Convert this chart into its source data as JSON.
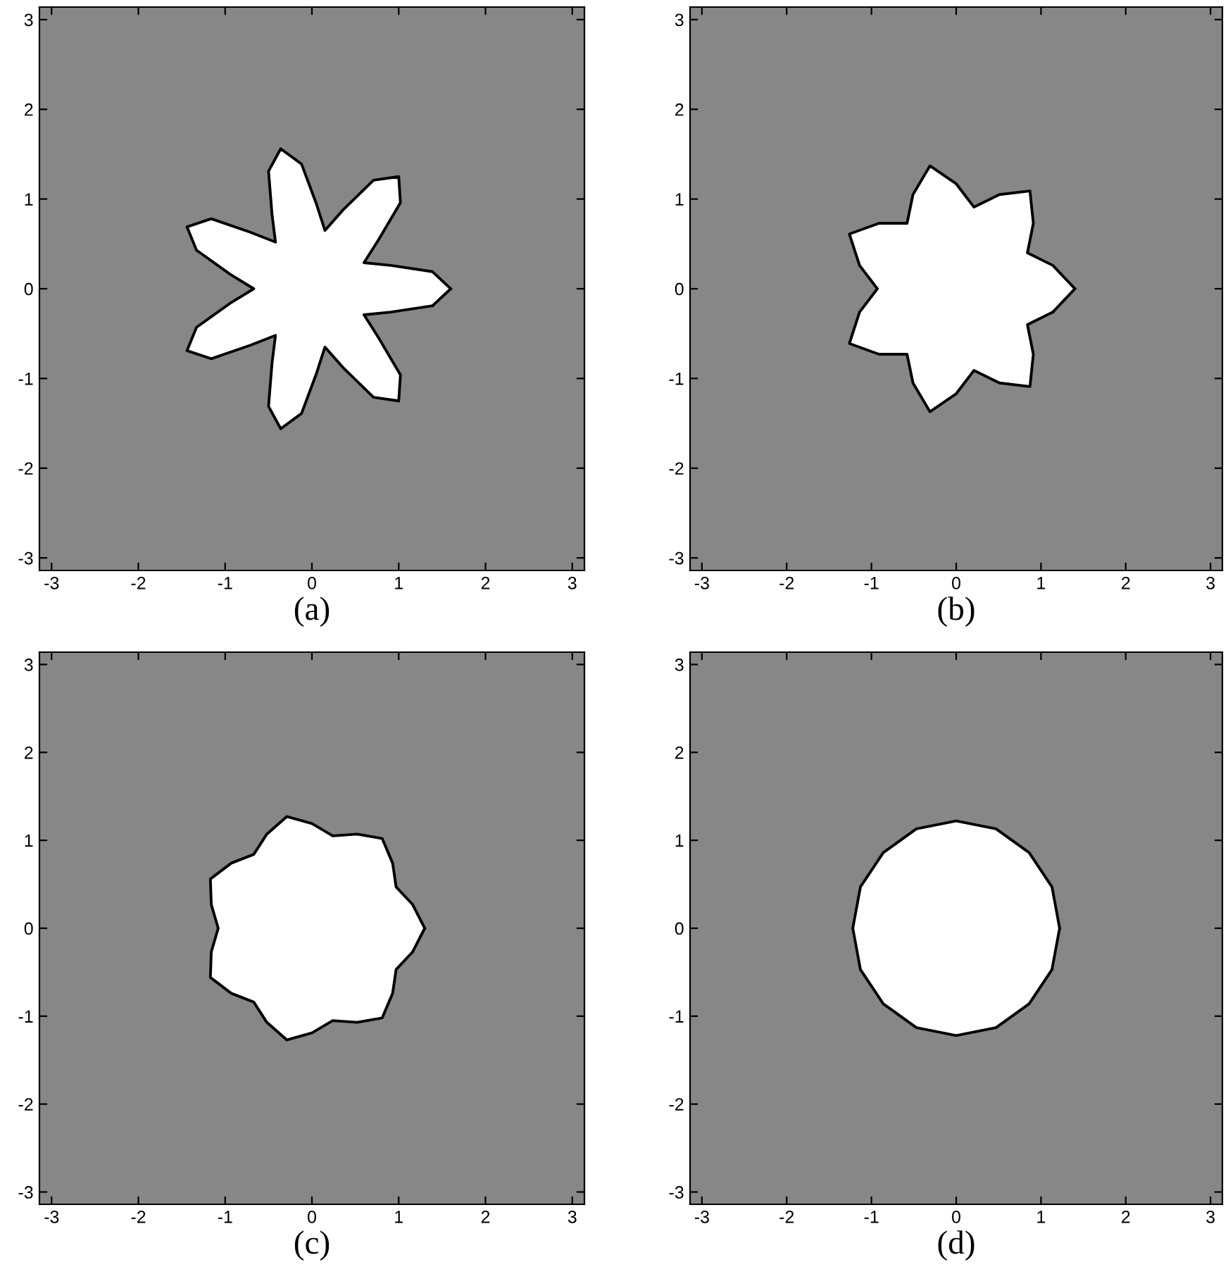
{
  "chart_data": [
    {
      "type": "line",
      "xlabel": "(a)",
      "xlim": [
        -3.14,
        3.14
      ],
      "ylim": [
        -3.14,
        3.14
      ],
      "xticks": [
        -3,
        -2,
        -1,
        0,
        1,
        2,
        3
      ],
      "yticks": [
        -3,
        -2,
        -1,
        0,
        1,
        2,
        3
      ],
      "grid": false,
      "series": [
        {
          "color": "#000000",
          "x": [
            1.6,
            1.39,
            0.91,
            0.6,
            0.77,
            1.02,
            1.0,
            0.71,
            0.36,
            0.15,
            0.05,
            -0.12,
            -0.36,
            -0.5,
            -0.46,
            -0.42,
            -0.71,
            -1.16,
            -1.44,
            -1.33,
            -0.94,
            -0.67,
            -0.94,
            -1.33,
            -1.44,
            -1.16,
            -0.71,
            -0.42,
            -0.46,
            -0.5,
            -0.36,
            -0.12,
            0.05,
            0.15,
            0.36,
            0.71,
            1.0,
            1.02,
            0.77,
            0.6,
            0.91,
            1.39
          ],
          "values": [
            0,
            0.19,
            0.26,
            0.29,
            0.55,
            0.96,
            1.25,
            1.21,
            0.88,
            0.65,
            0.95,
            1.39,
            1.56,
            1.31,
            0.83,
            0.52,
            0.63,
            0.78,
            0.69,
            0.43,
            0.16,
            0,
            -0.16,
            -0.43,
            -0.69,
            -0.78,
            -0.63,
            -0.52,
            -0.83,
            -1.31,
            -1.56,
            -1.39,
            -0.95,
            -0.65,
            -0.88,
            -1.21,
            -1.25,
            -0.96,
            -0.55,
            -0.29,
            -0.26,
            -0.19
          ]
        }
      ]
    },
    {
      "type": "line",
      "xlabel": "(b)",
      "xlim": [
        -3.14,
        3.14
      ],
      "ylim": [
        -3.14,
        3.14
      ],
      "xticks": [
        -3,
        -2,
        -1,
        0,
        1,
        2,
        3
      ],
      "yticks": [
        -3,
        -2,
        -1,
        0,
        1,
        2,
        3
      ],
      "grid": false,
      "series": [
        {
          "color": "#000000",
          "x": [
            1.4,
            1.14,
            0.84,
            0.91,
            0.87,
            0.51,
            0.21,
            0,
            -0.31,
            -0.51,
            -0.58,
            -0.91,
            -1.26,
            -1.14,
            -0.93,
            -1.14,
            -1.26,
            -0.91,
            -0.58,
            -0.51,
            -0.31,
            0,
            0.21,
            0.51,
            0.87,
            0.91,
            0.84,
            1.14
          ],
          "values": [
            0,
            0.26,
            0.4,
            0.73,
            1.09,
            1.05,
            0.91,
            1.17,
            1.37,
            1.05,
            0.73,
            0.73,
            0.61,
            0.26,
            0,
            -0.26,
            -0.61,
            -0.73,
            -0.73,
            -1.05,
            -1.37,
            -1.17,
            -0.91,
            -1.05,
            -1.09,
            -0.73,
            -0.4,
            -0.26
          ]
        }
      ]
    },
    {
      "type": "line",
      "xlabel": "(c)",
      "xlim": [
        -3.14,
        3.14
      ],
      "ylim": [
        -3.14,
        3.14
      ],
      "xticks": [
        -3,
        -2,
        -1,
        0,
        1,
        2,
        3
      ],
      "yticks": [
        -3,
        -2,
        -1,
        0,
        1,
        2,
        3
      ],
      "grid": false,
      "series": [
        {
          "color": "#000000",
          "x": [
            1.3,
            1.16,
            0.97,
            0.93,
            0.81,
            0.52,
            0.24,
            0,
            -0.29,
            -0.52,
            -0.67,
            -0.93,
            -1.17,
            -1.16,
            -1.08,
            -1.16,
            -1.17,
            -0.93,
            -0.67,
            -0.52,
            -0.29,
            0,
            0.24,
            0.52,
            0.81,
            0.93,
            0.97,
            1.16
          ],
          "values": [
            0,
            0.27,
            0.47,
            0.74,
            1.02,
            1.07,
            1.05,
            1.19,
            1.27,
            1.07,
            0.84,
            0.74,
            0.56,
            0.27,
            0,
            -0.27,
            -0.56,
            -0.74,
            -0.84,
            -1.07,
            -1.27,
            -1.19,
            -1.05,
            -1.07,
            -1.02,
            -0.74,
            -0.47,
            -0.27
          ]
        }
      ]
    },
    {
      "type": "line",
      "xlabel": "(d)",
      "xlim": [
        -3.14,
        3.14
      ],
      "ylim": [
        -3.14,
        3.14
      ],
      "xticks": [
        -3,
        -2,
        -1,
        0,
        1,
        2,
        3
      ],
      "yticks": [
        -3,
        -2,
        -1,
        0,
        1,
        2,
        3
      ],
      "grid": false,
      "series": [
        {
          "color": "#000000",
          "x": [
            1.22,
            1.13,
            0.86,
            0.47,
            0,
            -0.47,
            -0.86,
            -1.13,
            -1.22,
            -1.13,
            -0.86,
            -0.47,
            0,
            0.47,
            0.86,
            1.13
          ],
          "values": [
            0,
            0.47,
            0.86,
            1.13,
            1.22,
            1.13,
            0.86,
            0.47,
            0,
            -0.47,
            -0.86,
            -1.13,
            -1.22,
            -1.13,
            -0.86,
            -0.47
          ]
        }
      ]
    }
  ]
}
